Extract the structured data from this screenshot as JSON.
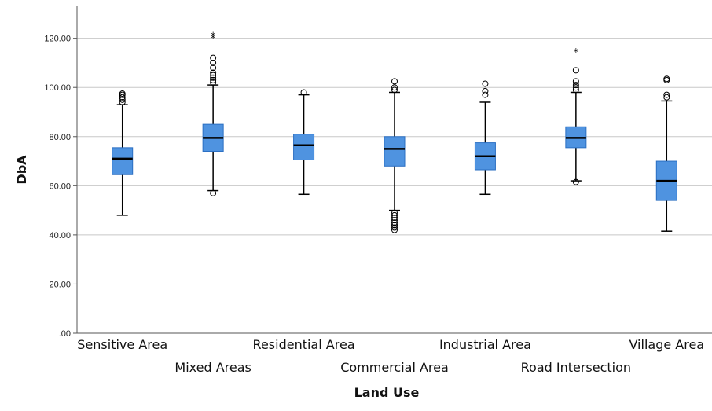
{
  "chart_data": {
    "type": "boxplot",
    "xlabel": "Land Use",
    "ylabel": "DbA",
    "ylim": [
      0,
      133
    ],
    "yticks": [
      {
        "value": 0,
        "label": ".00"
      },
      {
        "value": 20,
        "label": "20.00"
      },
      {
        "value": 40,
        "label": "40.00"
      },
      {
        "value": 60,
        "label": "60.00"
      },
      {
        "value": 80,
        "label": "80.00"
      },
      {
        "value": 100,
        "label": "100.00"
      },
      {
        "value": 120,
        "label": "120.00"
      }
    ],
    "grid": "horizontal",
    "colors": {
      "box": "#4f93e0",
      "box_edge": "#2b6fc2",
      "median": "#000000",
      "grid": "#c8c8c8",
      "axis": "#555555"
    },
    "categories": [
      "Sensitive Area",
      "Mixed Areas",
      "Residential Area",
      "Commercial Area",
      "Industrial Area",
      "Road Intersection",
      "Village Area"
    ],
    "series": [
      {
        "category": "Sensitive Area",
        "min": 48,
        "q1": 64.5,
        "median": 71,
        "q3": 75.5,
        "max": 93,
        "outliers": [
          94,
          95,
          96,
          97,
          97.5
        ],
        "extremes": []
      },
      {
        "category": "Mixed Areas",
        "min": 58,
        "q1": 74,
        "median": 79.5,
        "q3": 85,
        "max": 101,
        "outliers": [
          57,
          102,
          103,
          104,
          105,
          106,
          108,
          110,
          112
        ],
        "extremes": [
          120,
          121
        ]
      },
      {
        "category": "Residential Area",
        "min": 56.5,
        "q1": 70.5,
        "median": 76.5,
        "q3": 81,
        "max": 97,
        "outliers": [
          98
        ],
        "extremes": []
      },
      {
        "category": "Commercial Area",
        "min": 50,
        "q1": 68,
        "median": 75,
        "q3": 80,
        "max": 98,
        "outliers": [
          42,
          43,
          44,
          45,
          46,
          47,
          48,
          49,
          99,
          100,
          102.5
        ],
        "extremes": []
      },
      {
        "category": "Industrial Area",
        "min": 56.5,
        "q1": 66.5,
        "median": 72,
        "q3": 77.5,
        "max": 94,
        "outliers": [
          97,
          98.5,
          101.5
        ],
        "extremes": []
      },
      {
        "category": "Road Intersection",
        "min": 62,
        "q1": 75.5,
        "median": 79.5,
        "q3": 84,
        "max": 98,
        "outliers": [
          61.5,
          99,
          100,
          101,
          102.5,
          107
        ],
        "extremes": [
          114.5
        ]
      },
      {
        "category": "Village Area",
        "min": 41.5,
        "q1": 54,
        "median": 62,
        "q3": 70,
        "max": 94.5,
        "outliers": [
          96,
          97,
          103,
          103.5
        ],
        "extremes": []
      }
    ]
  }
}
